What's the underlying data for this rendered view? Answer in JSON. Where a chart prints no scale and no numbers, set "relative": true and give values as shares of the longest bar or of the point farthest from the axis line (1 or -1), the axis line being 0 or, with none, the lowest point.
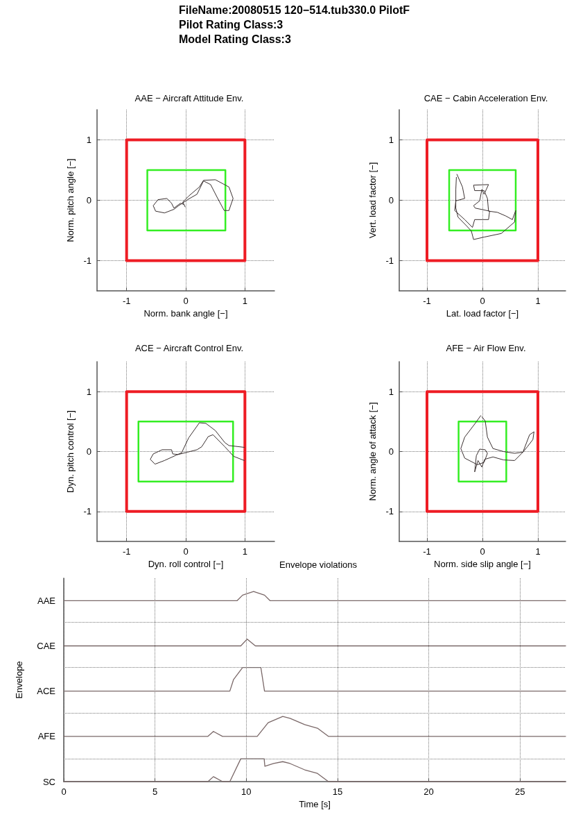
{
  "chart_data": [
    {
      "type": "other",
      "title": "FileName:20080515 120−514.tub330.0 PilotF",
      "annotations": [
        "Pilot Rating Class:3",
        "Model Rating Class:3"
      ]
    },
    {
      "type": "line",
      "title": "AAE − Aircraft Attitude Env.",
      "xlabel": "Norm. bank angle [−]",
      "ylabel": "Norm. pitch angle [−]",
      "xlim": [
        -1.5,
        1.5
      ],
      "ylim": [
        -1.5,
        1.5
      ],
      "xticks": [
        -1,
        0,
        1
      ],
      "yticks": [
        -1,
        0,
        1
      ],
      "grid": true,
      "marker": "none",
      "line_style": "solid",
      "series": [
        {
          "color": "#ee1c24",
          "x": [
            -1,
            -1,
            1,
            1,
            -1,
            -1
          ],
          "values": [
            0,
            1,
            1,
            -1,
            -1,
            0.05
          ]
        },
        {
          "color": "#33ee22",
          "x": [
            -0.65,
            -0.65,
            0.67,
            0.67,
            -0.65,
            -0.65
          ],
          "values": [
            0,
            0.5,
            0.5,
            -0.5,
            -0.5,
            0.05
          ]
        },
        {
          "color": "#3a3030",
          "x": [
            -0.01,
            -0.05,
            0.05,
            0.23,
            0.3,
            0.5,
            0.73,
            0.8,
            0.73,
            0.65,
            0.54,
            0.42,
            0.3,
            0.23,
            0.19,
            0.03,
            -0.12,
            -0.2,
            -0.36,
            -0.51,
            -0.55,
            -0.47,
            -0.32,
            -0.24,
            -0.2,
            -0.09,
            -0.03
          ],
          "values": [
            -0.11,
            -0.03,
            0.07,
            0.22,
            0.33,
            0.34,
            0.22,
            0.03,
            -0.17,
            -0.17,
            0.03,
            0.26,
            0.32,
            0.18,
            0.1,
            0.01,
            -0.09,
            -0.15,
            -0.21,
            -0.18,
            -0.09,
            0.01,
            0.03,
            -0.05,
            -0.13,
            -0.05,
            -0.07
          ]
        }
      ]
    },
    {
      "type": "line",
      "title": "CAE − Cabin Acceleration Env.",
      "xlabel": "Lat. load factor [−]",
      "ylabel": "Vert. load factor [−]",
      "xlim": [
        -1.5,
        1.5
      ],
      "ylim": [
        -1.5,
        1.5
      ],
      "xticks": [
        -1,
        0,
        1
      ],
      "yticks": [
        -1,
        0,
        1
      ],
      "grid": true,
      "marker": "none",
      "line_style": "solid",
      "series": [
        {
          "color": "#ee1c24",
          "x": [
            -1,
            -1,
            1,
            1,
            -1,
            -1
          ],
          "values": [
            0,
            1,
            1,
            -1,
            -1,
            0.05
          ]
        },
        {
          "color": "#33ee22",
          "x": [
            -0.6,
            -0.6,
            0.6,
            0.6,
            -0.6,
            -0.6
          ],
          "values": [
            0,
            0.5,
            0.5,
            -0.5,
            -0.5,
            0.05
          ]
        },
        {
          "color": "#3a3030",
          "x": [
            -0.46,
            -0.36,
            -0.32,
            -0.48,
            -0.5,
            -0.32,
            -0.18,
            -0.14,
            0.11,
            0.13,
            -0.13,
            -0.16,
            -0.05,
            -0.01,
            0.03,
            0.07,
            0.11,
            -0.16,
            -0.14,
            0.03,
            0.09,
            0.11,
            0.27,
            0.42,
            0.54,
            0.6,
            0.58,
            0.34,
            0.03,
            -0.16,
            -0.2,
            -0.28,
            -0.44,
            -0.48,
            -0.48,
            -0.47
          ],
          "values": [
            0.43,
            0.22,
            0.03,
            -0.01,
            -0.17,
            -0.32,
            -0.45,
            -0.32,
            -0.32,
            -0.18,
            -0.13,
            -0.09,
            -0.01,
            0.18,
            0.1,
            0.18,
            0.26,
            0.25,
            0.16,
            0.16,
            0.03,
            -0.18,
            -0.2,
            -0.26,
            -0.32,
            -0.17,
            -0.36,
            -0.55,
            -0.61,
            -0.65,
            -0.51,
            -0.43,
            -0.28,
            -0.13,
            0.18,
            0.38
          ]
        }
      ]
    },
    {
      "type": "line",
      "title": "ACE − Aircraft Control Env.",
      "xlabel": "Dyn. roll control [−]",
      "ylabel": "Dyn. pitch control [−]",
      "xlim": [
        -1.5,
        1.5
      ],
      "ylim": [
        -1.5,
        1.5
      ],
      "xticks": [
        -1,
        0,
        1
      ],
      "yticks": [
        -1,
        0,
        1
      ],
      "grid": true,
      "marker": "none",
      "line_style": "solid",
      "series": [
        {
          "color": "#ee1c24",
          "x": [
            -1,
            -1,
            1,
            1,
            -1,
            -1
          ],
          "values": [
            0,
            1,
            1,
            -1,
            -1,
            0.05
          ]
        },
        {
          "color": "#33ee22",
          "x": [
            -0.8,
            -0.8,
            0.8,
            0.8,
            -0.8,
            -0.8
          ],
          "values": [
            0,
            0.5,
            0.5,
            -0.5,
            -0.5,
            0.05
          ]
        },
        {
          "color": "#3a3030",
          "x": [
            0.99,
            0.73,
            0.66,
            0.5,
            0.34,
            0.23,
            0.05,
            -0.07,
            -0.16,
            -0.36,
            -0.52,
            -0.6,
            -0.55,
            -0.4,
            -0.24,
            -0.22,
            -0.13,
            0.03,
            0.19,
            0.27,
            0.38,
            0.46,
            0.66,
            0.81,
            0.99
          ],
          "values": [
            0.07,
            0.1,
            0.15,
            0.35,
            0.47,
            0.48,
            0.23,
            -0.02,
            -0.06,
            -0.15,
            -0.21,
            -0.13,
            -0.04,
            0.03,
            0.03,
            -0.04,
            -0.05,
            -0.01,
            0.03,
            0.08,
            0.25,
            0.28,
            0.08,
            -0.08,
            -0.15
          ]
        }
      ]
    },
    {
      "type": "line",
      "title": "AFE − Air Flow Env.",
      "xlabel": "Norm. side slip angle [−]",
      "ylabel": "Norm. angle of attack [−]",
      "xlim": [
        -1.5,
        1.5
      ],
      "ylim": [
        -1.5,
        1.5
      ],
      "xticks": [
        -1,
        0,
        1
      ],
      "yticks": [
        -1,
        0,
        1
      ],
      "grid": true,
      "marker": "none",
      "line_style": "solid",
      "series": [
        {
          "color": "#ee1c24",
          "x": [
            -1,
            -1,
            1,
            1,
            -1,
            -1
          ],
          "values": [
            0,
            1,
            1,
            -1,
            -1,
            0.05
          ]
        },
        {
          "color": "#33ee22",
          "x": [
            -0.43,
            -0.43,
            0.43,
            0.43,
            -0.43,
            -0.43
          ],
          "values": [
            0,
            0.5,
            0.5,
            -0.5,
            -0.5,
            0.05
          ]
        },
        {
          "color": "#3a3030",
          "x": [
            -0.03,
            -0.13,
            -0.32,
            -0.39,
            -0.32,
            -0.09,
            0.03,
            0.09,
            0.05,
            -0.05,
            -0.11,
            -0.14,
            -0.08,
            -0.01,
            0.04,
            0.19,
            0.38,
            0.58,
            0.73,
            0.85,
            0.93,
            0.91,
            0.81,
            0.73,
            0.58,
            0.38,
            0.19,
            0.09,
            0.05,
            -0.01
          ],
          "values": [
            0.6,
            0.47,
            0.24,
            0.05,
            -0.11,
            -0.22,
            -0.18,
            -0.03,
            0.03,
            0.04,
            -0.07,
            -0.34,
            -0.15,
            -0.26,
            -0.13,
            -0.09,
            -0.14,
            -0.15,
            -0.01,
            0.28,
            0.33,
            0.2,
            0.08,
            -0.01,
            -0.03,
            0,
            0.05,
            0.24,
            0.51,
            0.58
          ]
        }
      ]
    },
    {
      "type": "line",
      "title": "Envelope violations",
      "xlabel": "Time [s]",
      "ylabel": "Envelope",
      "xlim": [
        0,
        27.5
      ],
      "xticks": [
        0,
        5,
        10,
        15,
        20,
        25
      ],
      "relative": true,
      "tick_labels": "x",
      "grid": "x",
      "marker": "none",
      "line_style": "solid",
      "ref_lines": [
        {
          "axis": "y",
          "value": 0.12,
          "label": null,
          "color": "#777777",
          "line_style": "dotted"
        },
        {
          "axis": "y",
          "value": 0.36,
          "label": null,
          "color": "#777777",
          "line_style": "dotted"
        },
        {
          "axis": "y",
          "value": 0.6,
          "label": null,
          "color": "#777777",
          "line_style": "dotted"
        },
        {
          "axis": "y",
          "value": 0.84,
          "label": null,
          "color": "#777777",
          "line_style": "dotted"
        }
      ],
      "series": [
        {
          "name": "AAE",
          "color": "#7a6868",
          "x": [
            0,
            9.5,
            9.8,
            10.4,
            11.0,
            11.3,
            27.5
          ],
          "values": [
            0.952,
            0.952,
            0.981,
            1,
            0.981,
            0.952,
            0.952
          ]
        },
        {
          "name": "CAE",
          "color": "#7a6868",
          "x": [
            0,
            9.7,
            10.05,
            10.5,
            27.5
          ],
          "values": [
            0.714,
            0.714,
            0.75,
            0.714,
            0.714
          ]
        },
        {
          "name": "ACE",
          "color": "#7a6868",
          "x": [
            0,
            9.1,
            9.3,
            9.8,
            10.8,
            11.0,
            27.5
          ],
          "values": [
            0.476,
            0.476,
            0.536,
            0.6,
            0.6,
            0.476,
            0.476
          ]
        },
        {
          "name": "AFE",
          "color": "#7a6868",
          "x": [
            0,
            7.9,
            8.2,
            8.7,
            10.6,
            11.2,
            12.0,
            12.4,
            13.2,
            13.9,
            14.5,
            27.5
          ],
          "values": [
            0.238,
            0.238,
            0.264,
            0.238,
            0.238,
            0.31,
            0.343,
            0.333,
            0.3,
            0.281,
            0.238,
            0.238
          ]
        },
        {
          "name": "SC",
          "color": "#7a6868",
          "x": [
            0,
            7.9,
            8.2,
            8.7,
            9.1,
            9.7,
            10.98,
            11.02,
            11.5,
            12.0,
            12.4,
            13.2,
            13.9,
            14.5,
            27.5
          ],
          "values": [
            0,
            0,
            0.026,
            0,
            0,
            0.12,
            0.12,
            0.081,
            0.095,
            0.105,
            0.095,
            0.062,
            0.043,
            0,
            0
          ]
        }
      ]
    }
  ]
}
